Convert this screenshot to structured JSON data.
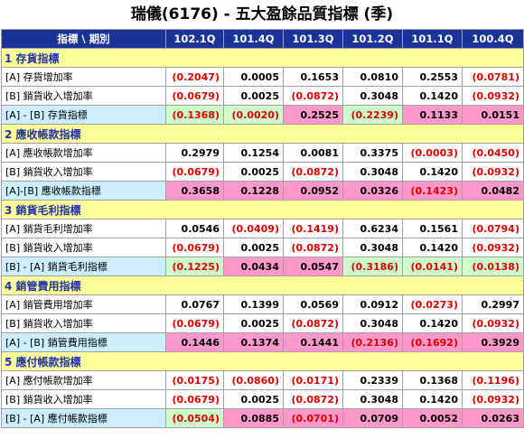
{
  "title": "瑞儀(6176) - 五大盈餘品質指標 (季)",
  "header": {
    "label": "指標 \\ 期別",
    "periods": [
      "102.1Q",
      "101.4Q",
      "101.3Q",
      "101.2Q",
      "101.1Q",
      "100.4Q"
    ]
  },
  "sections": [
    {
      "name": "1 存貨指標",
      "rows": [
        {
          "label": "[A] 存貨增加率",
          "indicator": false,
          "values": [
            "(0.2047)",
            "0.0005",
            "0.1653",
            "0.0810",
            "0.2553",
            "(0.0781)"
          ],
          "neg": [
            true,
            false,
            false,
            false,
            false,
            true
          ]
        },
        {
          "label": "[B] 銷貨收入增加率",
          "indicator": false,
          "values": [
            "(0.0679)",
            "0.0025",
            "(0.0872)",
            "0.3048",
            "0.1420",
            "(0.0932)"
          ],
          "neg": [
            true,
            false,
            true,
            false,
            false,
            true
          ]
        },
        {
          "label": "[A] - [B] 存貨指標",
          "indicator": true,
          "values": [
            "(0.1368)",
            "(0.0020)",
            "0.2525",
            "(0.2239)",
            "0.1133",
            "0.0151"
          ],
          "neg": [
            true,
            true,
            false,
            true,
            false,
            false
          ],
          "colors": [
            "green",
            "green",
            "pink",
            "green",
            "pink",
            "pink"
          ]
        }
      ]
    },
    {
      "name": "2 應收帳款指標",
      "rows": [
        {
          "label": "[A] 應收帳款增加率",
          "indicator": false,
          "values": [
            "0.2979",
            "0.1254",
            "0.0081",
            "0.3375",
            "(0.0003)",
            "(0.0450)"
          ],
          "neg": [
            false,
            false,
            false,
            false,
            true,
            true
          ]
        },
        {
          "label": "[B] 銷貨收入增加率",
          "indicator": false,
          "values": [
            "(0.0679)",
            "0.0025",
            "(0.0872)",
            "0.3048",
            "0.1420",
            "(0.0932)"
          ],
          "neg": [
            true,
            false,
            true,
            false,
            false,
            true
          ]
        },
        {
          "label": "[A]-[B] 應收帳款指標",
          "indicator": true,
          "values": [
            "0.3658",
            "0.1228",
            "0.0952",
            "0.0326",
            "(0.1423)",
            "0.0482"
          ],
          "neg": [
            false,
            false,
            false,
            false,
            true,
            false
          ],
          "colors": [
            "pink",
            "pink",
            "pink",
            "pink",
            "pink",
            "pink"
          ]
        }
      ]
    },
    {
      "name": "3 銷貨毛利指標",
      "rows": [
        {
          "label": "[A] 銷貨毛利增加率",
          "indicator": false,
          "values": [
            "0.0546",
            "(0.0409)",
            "(0.1419)",
            "0.6234",
            "0.1561",
            "(0.0794)"
          ],
          "neg": [
            false,
            true,
            true,
            false,
            false,
            true
          ]
        },
        {
          "label": "[B] 銷貨收入增加率",
          "indicator": false,
          "values": [
            "(0.0679)",
            "0.0025",
            "(0.0872)",
            "0.3048",
            "0.1420",
            "(0.0932)"
          ],
          "neg": [
            true,
            false,
            true,
            false,
            false,
            true
          ]
        },
        {
          "label": "[B] - [A] 銷貨毛利指標",
          "indicator": true,
          "values": [
            "(0.1225)",
            "0.0434",
            "0.0547",
            "(0.3186)",
            "(0.0141)",
            "(0.0138)"
          ],
          "neg": [
            true,
            false,
            false,
            true,
            true,
            true
          ],
          "colors": [
            "green",
            "pink",
            "pink",
            "green",
            "green",
            "green"
          ]
        }
      ]
    },
    {
      "name": "4 銷管費用指標",
      "rows": [
        {
          "label": "[A] 銷管費用增加率",
          "indicator": false,
          "values": [
            "0.0767",
            "0.1399",
            "0.0569",
            "0.0912",
            "(0.0273)",
            "0.2997"
          ],
          "neg": [
            false,
            false,
            false,
            false,
            true,
            false
          ]
        },
        {
          "label": "[B] 銷貨收入增加率",
          "indicator": false,
          "values": [
            "(0.0679)",
            "0.0025",
            "(0.0872)",
            "0.3048",
            "0.1420",
            "(0.0932)"
          ],
          "neg": [
            true,
            false,
            true,
            false,
            false,
            true
          ]
        },
        {
          "label": "[A] - [B] 銷管費用指標",
          "indicator": true,
          "values": [
            "0.1446",
            "0.1374",
            "0.1441",
            "(0.2136)",
            "(0.1692)",
            "0.3929"
          ],
          "neg": [
            false,
            false,
            false,
            true,
            true,
            false
          ],
          "colors": [
            "pink",
            "pink",
            "pink",
            "pink",
            "pink",
            "pink"
          ]
        }
      ]
    },
    {
      "name": "5 應付帳款指標",
      "rows": [
        {
          "label": "[A] 應付帳款增加率",
          "indicator": false,
          "values": [
            "(0.0175)",
            "(0.0860)",
            "(0.0171)",
            "0.2339",
            "0.1368",
            "(0.1196)"
          ],
          "neg": [
            true,
            true,
            true,
            false,
            false,
            true
          ]
        },
        {
          "label": "[B] 銷貨收入增加率",
          "indicator": false,
          "values": [
            "(0.0679)",
            "0.0025",
            "(0.0872)",
            "0.3048",
            "0.1420",
            "(0.0932)"
          ],
          "neg": [
            true,
            false,
            true,
            false,
            false,
            true
          ]
        },
        {
          "label": "[B] - [A] 應付帳款指標",
          "indicator": true,
          "values": [
            "(0.0504)",
            "0.0885",
            "(0.0701)",
            "0.0709",
            "0.0052",
            "0.0263"
          ],
          "neg": [
            true,
            false,
            true,
            false,
            false,
            false
          ],
          "colors": [
            "green",
            "pink",
            "pink",
            "pink",
            "pink",
            "pink"
          ]
        }
      ]
    }
  ]
}
